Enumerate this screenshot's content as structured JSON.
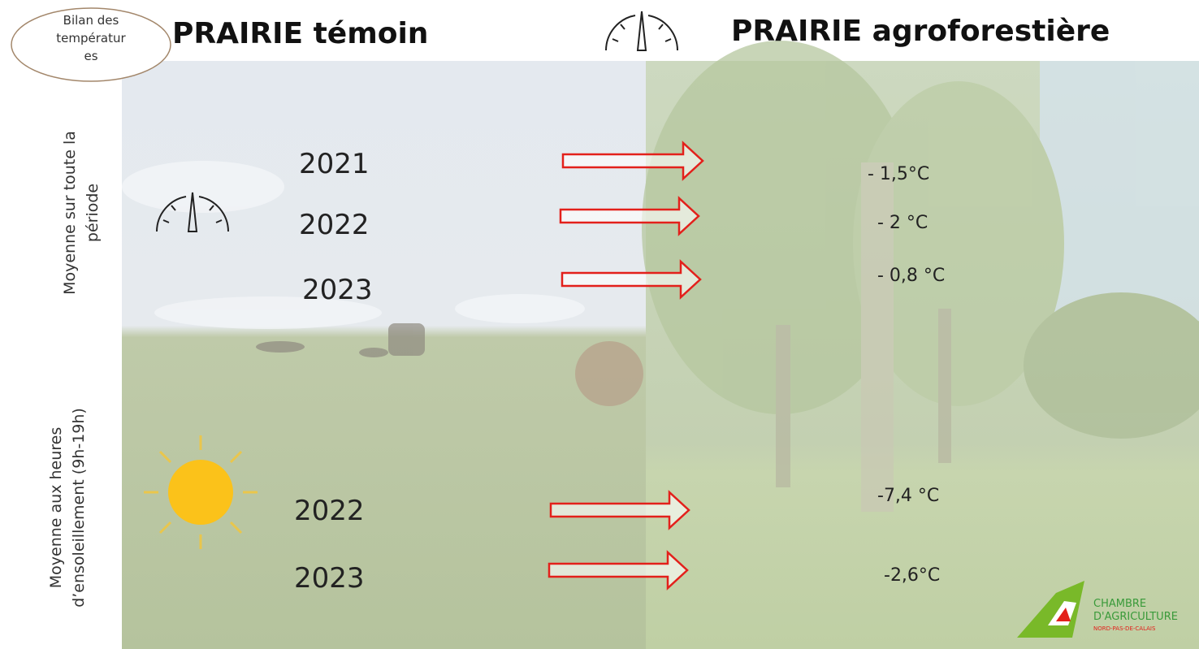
{
  "badge": {
    "lines": [
      "Bilan des",
      "températur",
      "es"
    ]
  },
  "left_title": "PRAIRIE témoin",
  "right_title": "PRAIRIE agroforestière",
  "sections": [
    {
      "label_lines": [
        "Moyenne sur toute la",
        "période"
      ],
      "rows": [
        {
          "year": "2021",
          "difference": "- 1,5°C"
        },
        {
          "year": "2022",
          "difference": "- 2 °C"
        },
        {
          "year": "2023",
          "difference": "- 0,8 °C"
        }
      ]
    },
    {
      "label_lines": [
        "Moyenne aux heures",
        "d’ensoleillement (9h-19h)"
      ],
      "rows": [
        {
          "year": "2022",
          "difference": "-7,4 °C"
        },
        {
          "year": "2023",
          "difference": "-2,6°C"
        }
      ]
    }
  ],
  "logo": {
    "lines": [
      "CHAMBRE",
      "D'AGRICULTURE",
      "NORD-PAS-DE-CALAIS"
    ]
  }
}
